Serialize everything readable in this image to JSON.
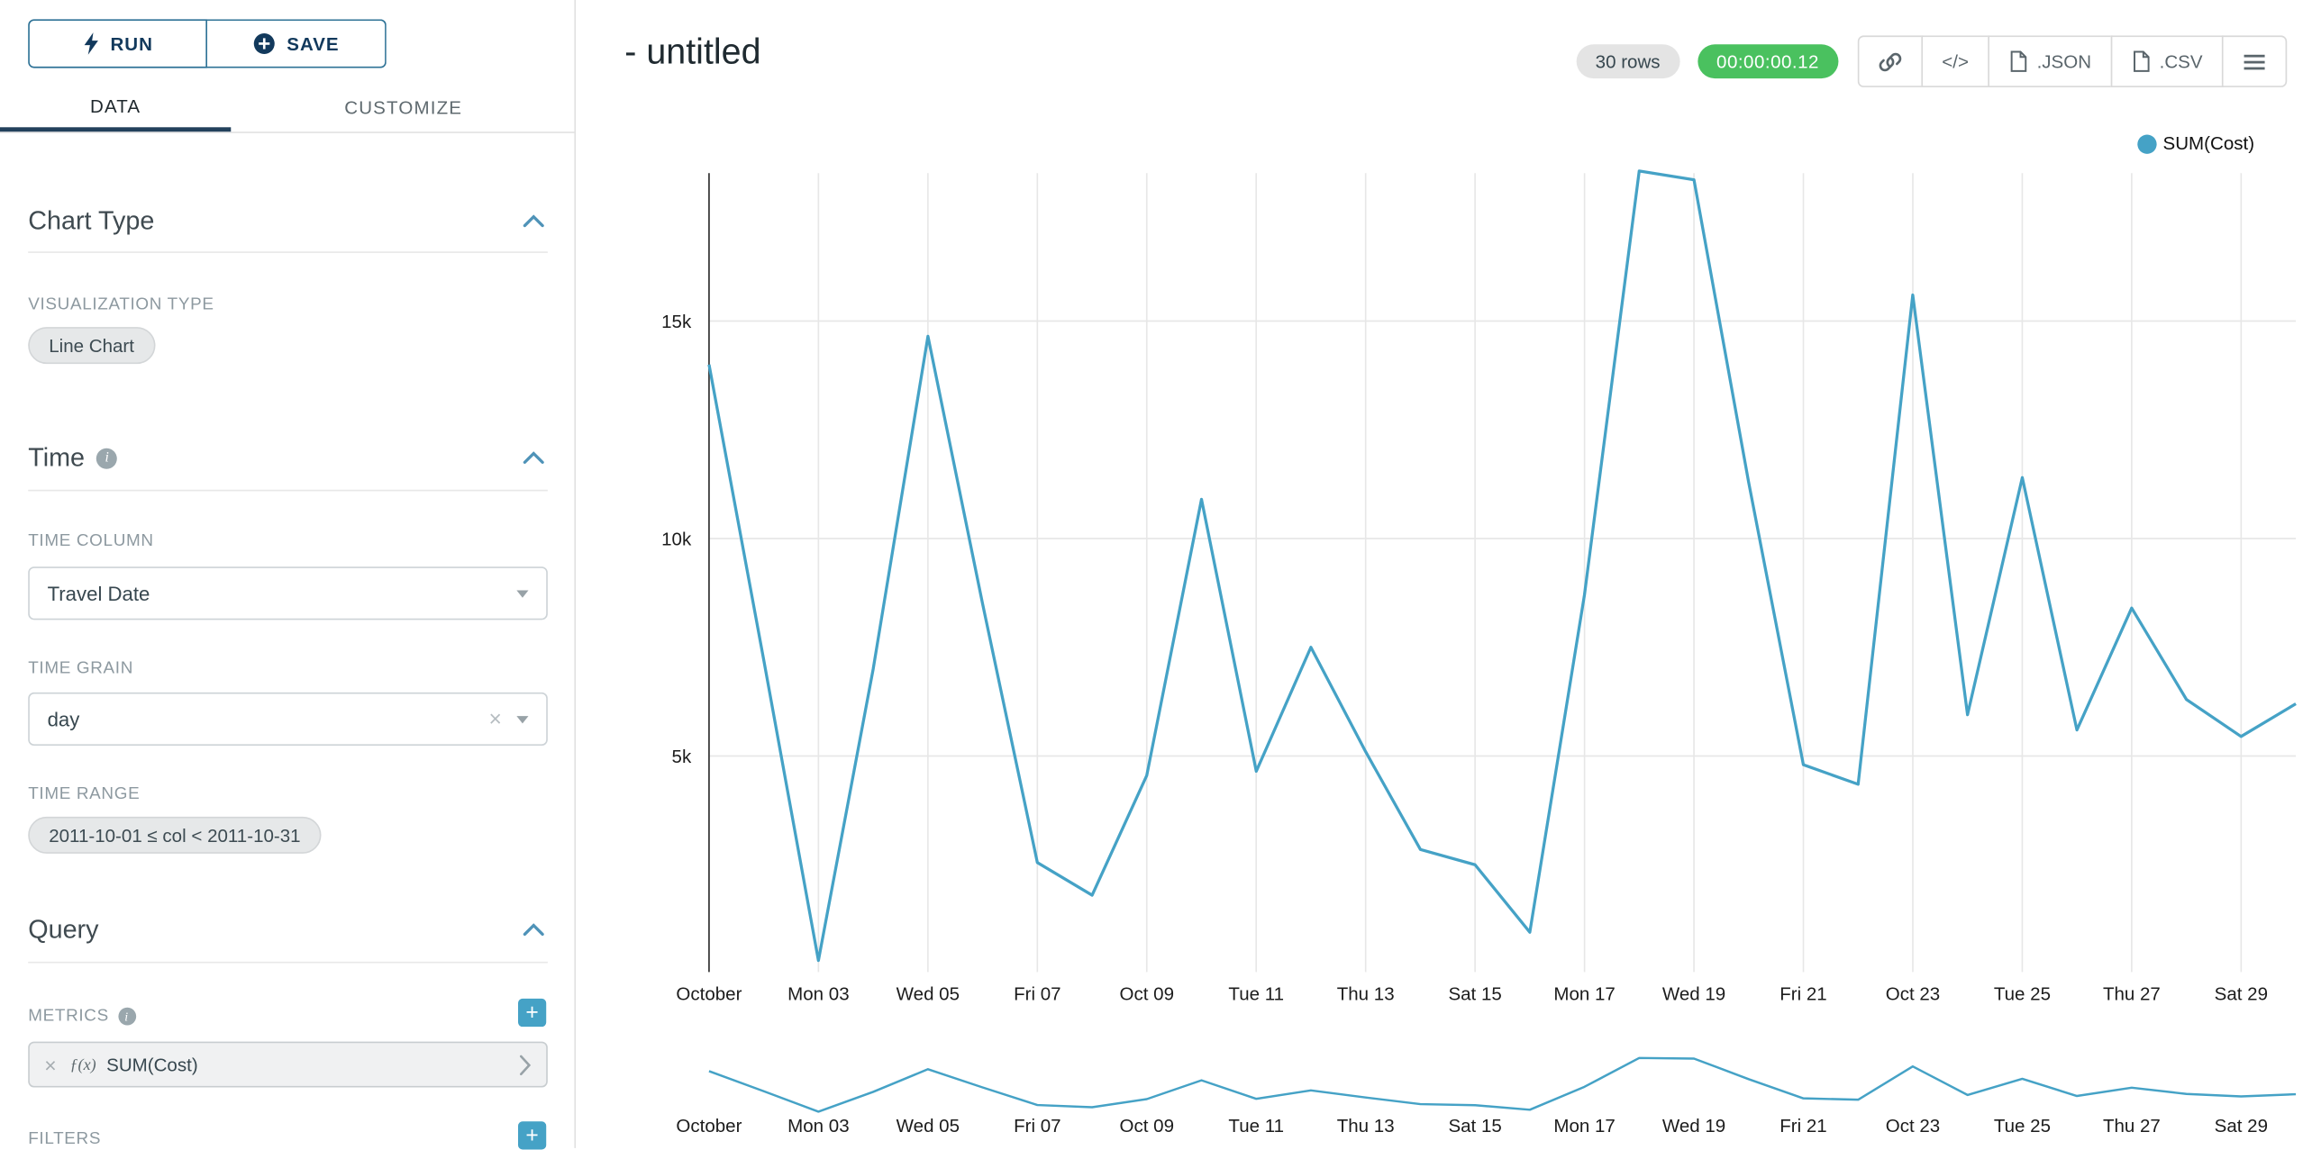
{
  "icons": {
    "plus": "+",
    "clear": "×",
    "remove": "×"
  },
  "sidebar": {
    "run_button": "RUN",
    "save_button": "SAVE",
    "tabs": {
      "data": "DATA",
      "customize": "CUSTOMIZE"
    },
    "chart_type_section": {
      "title": "Chart Type",
      "visualization_type_label": "VISUALIZATION TYPE",
      "visualization_type_value": "Line Chart"
    },
    "time_section": {
      "title": "Time",
      "time_column_label": "TIME COLUMN",
      "time_column_value": "Travel Date",
      "time_grain_label": "TIME GRAIN",
      "time_grain_value": "day",
      "time_range_label": "TIME RANGE",
      "time_range_value": "2011-10-01 ≤ col < 2011-10-31"
    },
    "query_section": {
      "title": "Query",
      "metrics_label": "METRICS",
      "metric_function": "ƒ(x)",
      "metric_value": "SUM(Cost)",
      "filters_label": "FILTERS"
    }
  },
  "header": {
    "title": "- untitled",
    "row_count_badge": "30 rows",
    "duration_badge": "00:00:00.12",
    "embed_button": "</>",
    "json_button": ".JSON",
    "csv_button": ".CSV"
  },
  "chart_data": {
    "type": "line",
    "title": "",
    "x_axis": {
      "column": "Travel Date",
      "grain": "day",
      "dates": [
        "2011-10-01",
        "2011-10-02",
        "2011-10-03",
        "2011-10-04",
        "2011-10-05",
        "2011-10-06",
        "2011-10-07",
        "2011-10-08",
        "2011-10-09",
        "2011-10-10",
        "2011-10-11",
        "2011-10-12",
        "2011-10-13",
        "2011-10-14",
        "2011-10-15",
        "2011-10-16",
        "2011-10-17",
        "2011-10-18",
        "2011-10-19",
        "2011-10-20",
        "2011-10-21",
        "2011-10-22",
        "2011-10-23",
        "2011-10-24",
        "2011-10-25",
        "2011-10-26",
        "2011-10-27",
        "2011-10-28",
        "2011-10-29",
        "2011-10-30"
      ],
      "tick_labels": [
        "October",
        "Mon 03",
        "Wed 05",
        "Fri 07",
        "Oct 09",
        "Tue 11",
        "Thu 13",
        "Sat 15",
        "Mon 17",
        "Wed 19",
        "Fri 21",
        "Oct 23",
        "Tue 25",
        "Thu 27",
        "Sat 29"
      ]
    },
    "y_axis": {
      "range": [
        0,
        18500
      ],
      "ticks": [
        {
          "value": 5000,
          "label": "5k"
        },
        {
          "value": 10000,
          "label": "10k"
        },
        {
          "value": 15000,
          "label": "15k"
        }
      ]
    },
    "series": [
      {
        "name": "SUM(Cost)",
        "color": "#45a2c6",
        "values": [
          14000,
          7200,
          300,
          7000,
          14650,
          8500,
          2550,
          1800,
          4550,
          10900,
          4650,
          7500,
          5100,
          2850,
          2500,
          950,
          8700,
          18450,
          18250,
          11300,
          4800,
          4350,
          15600,
          5950,
          11400,
          5600,
          8400,
          6300,
          5450,
          6200
        ]
      }
    ],
    "legend": [
      {
        "name": "SUM(Cost)",
        "color": "#45a2c6"
      }
    ],
    "grid": true,
    "focus_chart": true
  }
}
